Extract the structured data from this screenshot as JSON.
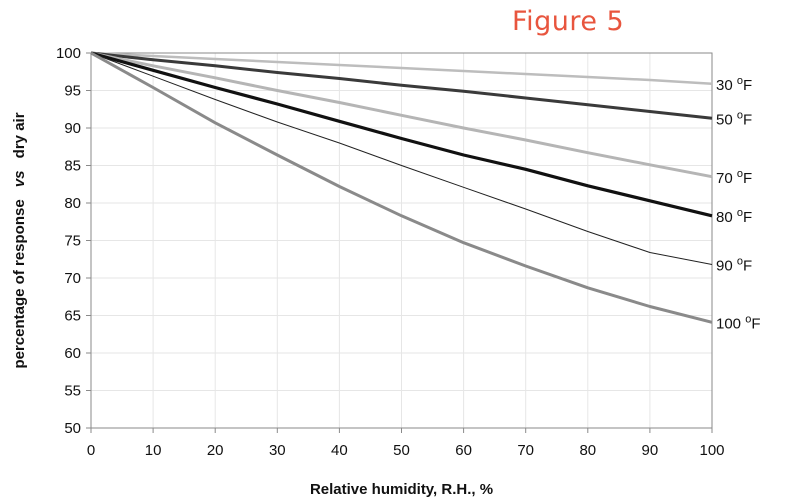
{
  "figure_label": "Figure 5",
  "chart_data": {
    "type": "line",
    "title": "",
    "xlabel": "Relative humidity, R.H., %",
    "ylabel_parts": [
      "percentage of response",
      "vs",
      "dry air"
    ],
    "xlim": [
      0,
      100
    ],
    "ylim": [
      50,
      100
    ],
    "xticks": [
      0,
      10,
      20,
      30,
      40,
      50,
      60,
      70,
      80,
      90,
      100
    ],
    "yticks": [
      50,
      55,
      60,
      65,
      70,
      75,
      80,
      85,
      90,
      95,
      100
    ],
    "grid": true,
    "x": [
      0,
      10,
      20,
      30,
      40,
      50,
      60,
      70,
      80,
      90,
      100
    ],
    "series": [
      {
        "name": "30",
        "unit": "°F",
        "color": "#bdbdbd",
        "values": [
          100,
          99.6,
          99.2,
          98.8,
          98.4,
          98.0,
          97.6,
          97.2,
          96.8,
          96.4,
          95.9
        ]
      },
      {
        "name": "50",
        "unit": "°F",
        "color": "#3a3a3a",
        "values": [
          100,
          99.1,
          98.3,
          97.4,
          96.6,
          95.7,
          94.9,
          94.0,
          93.1,
          92.2,
          91.3
        ]
      },
      {
        "name": "70",
        "unit": "°F",
        "color": "#b5b5b5",
        "values": [
          100,
          98.3,
          96.7,
          95.0,
          93.4,
          91.7,
          90.0,
          88.4,
          86.7,
          85.1,
          83.5
        ]
      },
      {
        "name": "80",
        "unit": "°F",
        "color": "#111111",
        "values": [
          100,
          97.7,
          95.4,
          93.2,
          90.9,
          88.6,
          86.4,
          84.5,
          82.3,
          80.3,
          78.3
        ]
      },
      {
        "name": "90",
        "unit": "°F",
        "color": "#222222",
        "values": [
          100,
          96.9,
          93.8,
          90.8,
          88.0,
          85.0,
          82.1,
          79.2,
          76.2,
          73.4,
          71.8
        ]
      },
      {
        "name": "100",
        "unit": "°F",
        "color": "#8a8a8a",
        "values": [
          100,
          95.4,
          90.7,
          86.4,
          82.2,
          78.3,
          74.7,
          71.6,
          68.7,
          66.2,
          64.1
        ]
      }
    ]
  }
}
